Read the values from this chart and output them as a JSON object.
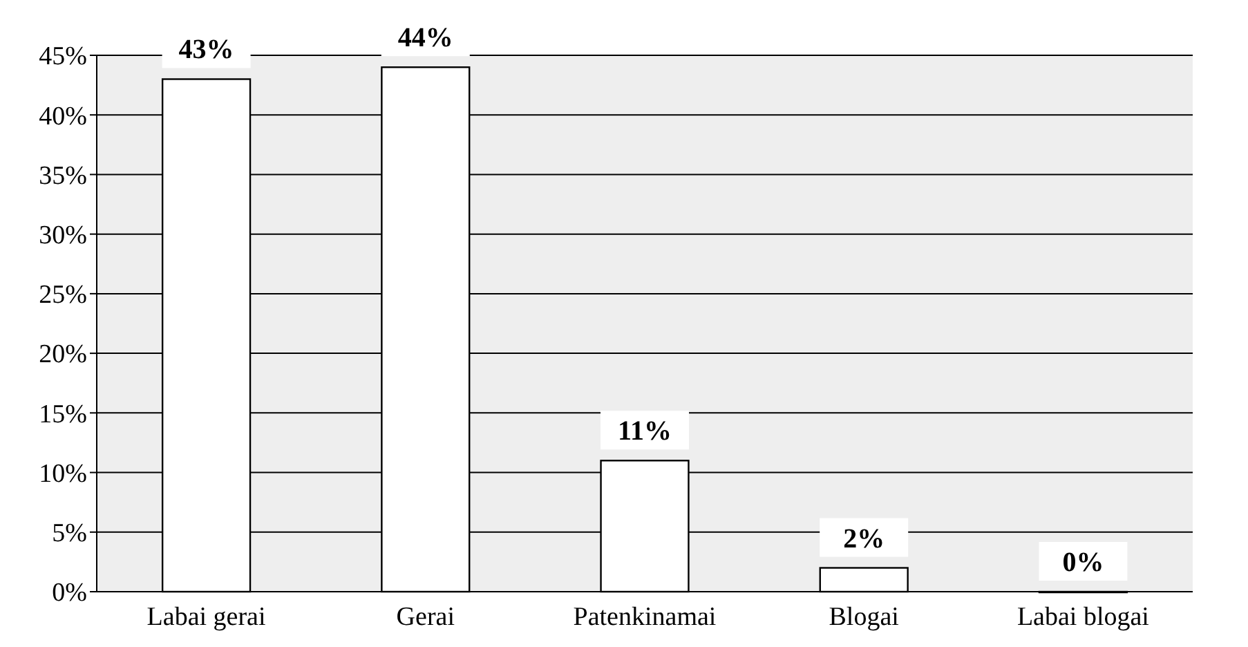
{
  "chart_data": {
    "type": "bar",
    "categories": [
      "Labai gerai",
      "Gerai",
      "Patenkinamai",
      "Blogai",
      "Labai blogai"
    ],
    "values": [
      43,
      44,
      11,
      2,
      0
    ],
    "color": "#ffffff",
    "value_labels": [
      "43%",
      "44%",
      "11%",
      "2%",
      "0%"
    ],
    "ylim": [
      0,
      45
    ],
    "yticks": [
      {
        "value": 0,
        "label": "0%"
      },
      {
        "value": 5,
        "label": "5%"
      },
      {
        "value": 10,
        "label": "10%"
      },
      {
        "value": 15,
        "label": "15%"
      },
      {
        "value": 20,
        "label": "20%"
      },
      {
        "value": 25,
        "label": "25%"
      },
      {
        "value": 30,
        "label": "30%"
      },
      {
        "value": 35,
        "label": "35%"
      },
      {
        "value": 40,
        "label": "40%"
      },
      {
        "value": 45,
        "label": "45%"
      }
    ],
    "grid": "y"
  }
}
